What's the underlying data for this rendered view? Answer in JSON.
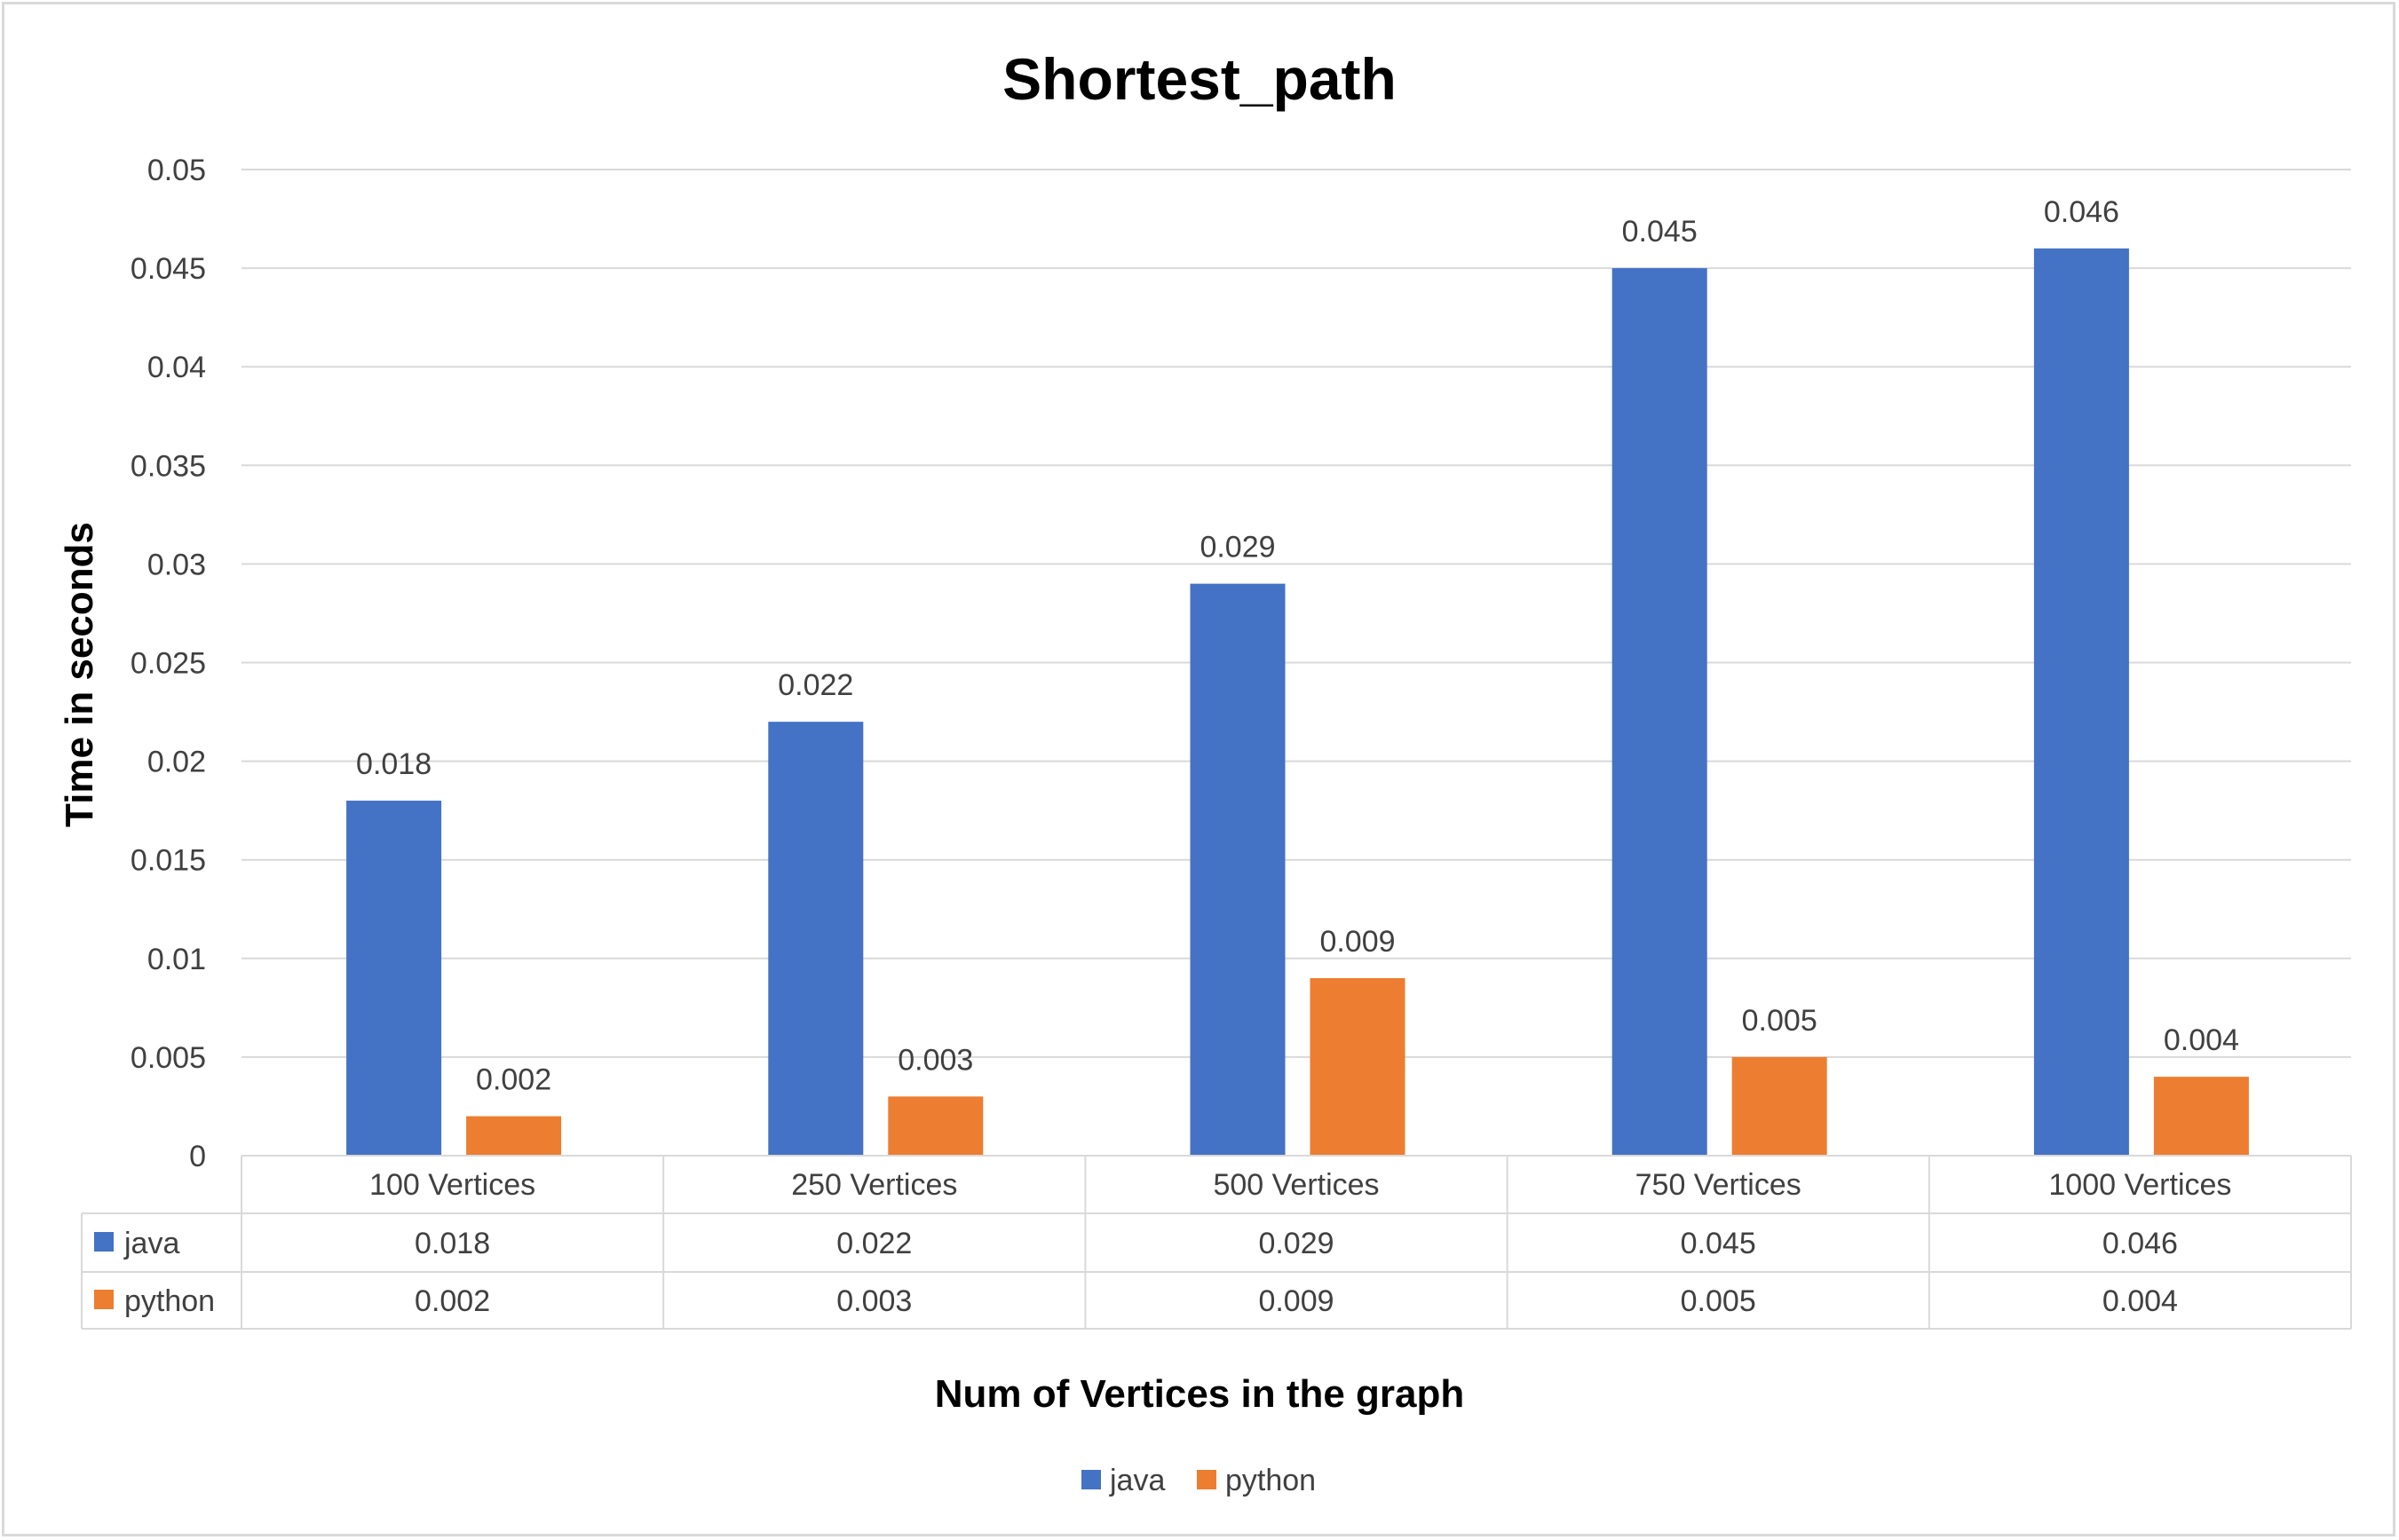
{
  "chart_data": {
    "type": "bar",
    "title": "Shortest_path",
    "xlabel": "Num of Vertices in the graph",
    "ylabel": "Time in seconds",
    "categories": [
      "100 Vertices",
      "250 Vertices",
      "500 Vertices",
      "750 Vertices",
      "1000 Vertices"
    ],
    "series": [
      {
        "name": "java",
        "color": "#4472c4",
        "values": [
          0.018,
          0.022,
          0.029,
          0.045,
          0.046
        ],
        "labels": [
          "0.018",
          "0.022",
          "0.029",
          "0.045",
          "0.046"
        ]
      },
      {
        "name": "python",
        "color": "#ed7d31",
        "values": [
          0.002,
          0.003,
          0.009,
          0.005,
          0.004
        ],
        "labels": [
          "0.002",
          "0.003",
          "0.009",
          "0.005",
          "0.004"
        ]
      }
    ],
    "ylim": [
      0,
      0.05
    ],
    "yticks": [
      "0",
      "0.005",
      "0.01",
      "0.015",
      "0.02",
      "0.025",
      "0.03",
      "0.035",
      "0.04",
      "0.045",
      "0.05"
    ],
    "grid": true,
    "data_table": true,
    "legend_position": "bottom"
  }
}
